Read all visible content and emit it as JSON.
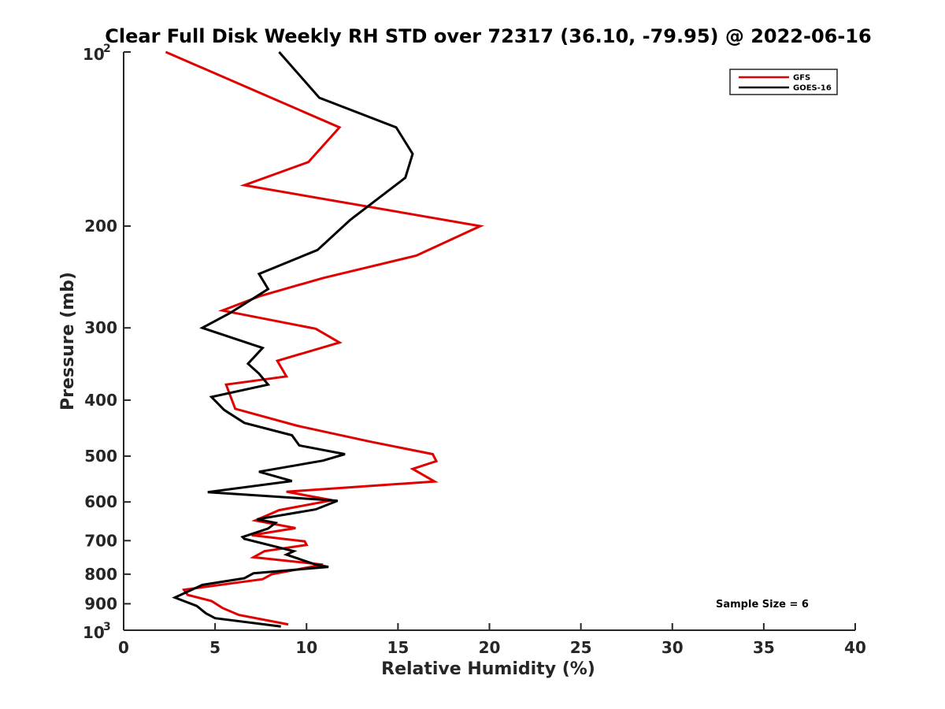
{
  "chart_data": {
    "type": "line",
    "title": "Clear Full Disk Weekly RH STD over 72317 (36.10, -79.95) @ 2022-06-16",
    "xlabel": "Relative Humidity (%)",
    "ylabel": "Pressure (mb)",
    "xlim": [
      0,
      40
    ],
    "ylim": [
      100,
      1000
    ],
    "y_scale": "log",
    "y_reversed": true,
    "x_ticks": [
      "0",
      "5",
      "10",
      "15",
      "20",
      "25",
      "30",
      "35",
      "40"
    ],
    "y_ticks": [
      {
        "value": 100,
        "base": "10",
        "exp": "2"
      },
      {
        "value": 200,
        "label": "200"
      },
      {
        "value": 300,
        "label": "300"
      },
      {
        "value": 400,
        "label": "400"
      },
      {
        "value": 500,
        "label": "500"
      },
      {
        "value": 600,
        "label": "600"
      },
      {
        "value": 700,
        "label": "700"
      },
      {
        "value": 800,
        "label": "800"
      },
      {
        "value": 900,
        "label": "900"
      },
      {
        "value": 1000,
        "base": "10",
        "exp": "3"
      }
    ],
    "grid": false,
    "legend_position": "top-right",
    "annotation": "Sample Size = 6",
    "series": [
      {
        "name": "GFS",
        "color": "#e00000",
        "points": [
          [
            2.3,
            100
          ],
          [
            11.8,
            135
          ],
          [
            10.1,
            155
          ],
          [
            6.6,
            170
          ],
          [
            19.5,
            200
          ],
          [
            16.0,
            225
          ],
          [
            10.9,
            246
          ],
          [
            7.5,
            264
          ],
          [
            5.4,
            280
          ],
          [
            10.5,
            301
          ],
          [
            11.8,
            318
          ],
          [
            8.4,
            342
          ],
          [
            8.9,
            364
          ],
          [
            5.6,
            376
          ],
          [
            6.1,
            414
          ],
          [
            9.5,
            443
          ],
          [
            13.5,
            472
          ],
          [
            16.9,
            496
          ],
          [
            17.1,
            510
          ],
          [
            15.8,
            526
          ],
          [
            17.0,
            553
          ],
          [
            8.9,
            576
          ],
          [
            11.4,
            596
          ],
          [
            8.5,
            620
          ],
          [
            7.2,
            646
          ],
          [
            9.4,
            666
          ],
          [
            7.0,
            685
          ],
          [
            9.9,
            702
          ],
          [
            10.0,
            712
          ],
          [
            7.7,
            730
          ],
          [
            7.1,
            748
          ],
          [
            10.9,
            770
          ],
          [
            8.1,
            800
          ],
          [
            7.6,
            816
          ],
          [
            3.3,
            851
          ],
          [
            3.5,
            869
          ],
          [
            4.8,
            890
          ],
          [
            5.4,
            915
          ],
          [
            6.3,
            941
          ],
          [
            9.0,
            977
          ]
        ]
      },
      {
        "name": "GOES-16",
        "color": "#000000",
        "points": [
          [
            8.5,
            100
          ],
          [
            10.7,
            120
          ],
          [
            14.9,
            135
          ],
          [
            15.8,
            150
          ],
          [
            15.4,
            165
          ],
          [
            12.4,
            195
          ],
          [
            10.6,
            220
          ],
          [
            7.4,
            242
          ],
          [
            7.9,
            257
          ],
          [
            5.8,
            283
          ],
          [
            4.3,
            300
          ],
          [
            7.6,
            325
          ],
          [
            6.8,
            346
          ],
          [
            7.4,
            360
          ],
          [
            7.9,
            376
          ],
          [
            4.8,
            395
          ],
          [
            5.5,
            416
          ],
          [
            6.6,
            438
          ],
          [
            9.2,
            460
          ],
          [
            9.6,
            479
          ],
          [
            12.1,
            496
          ],
          [
            10.9,
            509
          ],
          [
            7.4,
            532
          ],
          [
            9.2,
            552
          ],
          [
            4.6,
            577
          ],
          [
            11.7,
            597
          ],
          [
            10.5,
            618
          ],
          [
            7.3,
            643
          ],
          [
            8.3,
            652
          ],
          [
            7.9,
            667
          ],
          [
            6.5,
            690
          ],
          [
            6.6,
            695
          ],
          [
            9.3,
            730
          ],
          [
            8.9,
            740
          ],
          [
            10.5,
            770
          ],
          [
            11.2,
            777
          ],
          [
            7.1,
            797
          ],
          [
            6.6,
            813
          ],
          [
            4.3,
            835
          ],
          [
            2.8,
            878
          ],
          [
            4.0,
            908
          ],
          [
            4.5,
            935
          ],
          [
            5.0,
            953
          ],
          [
            8.6,
            985
          ]
        ]
      }
    ]
  }
}
